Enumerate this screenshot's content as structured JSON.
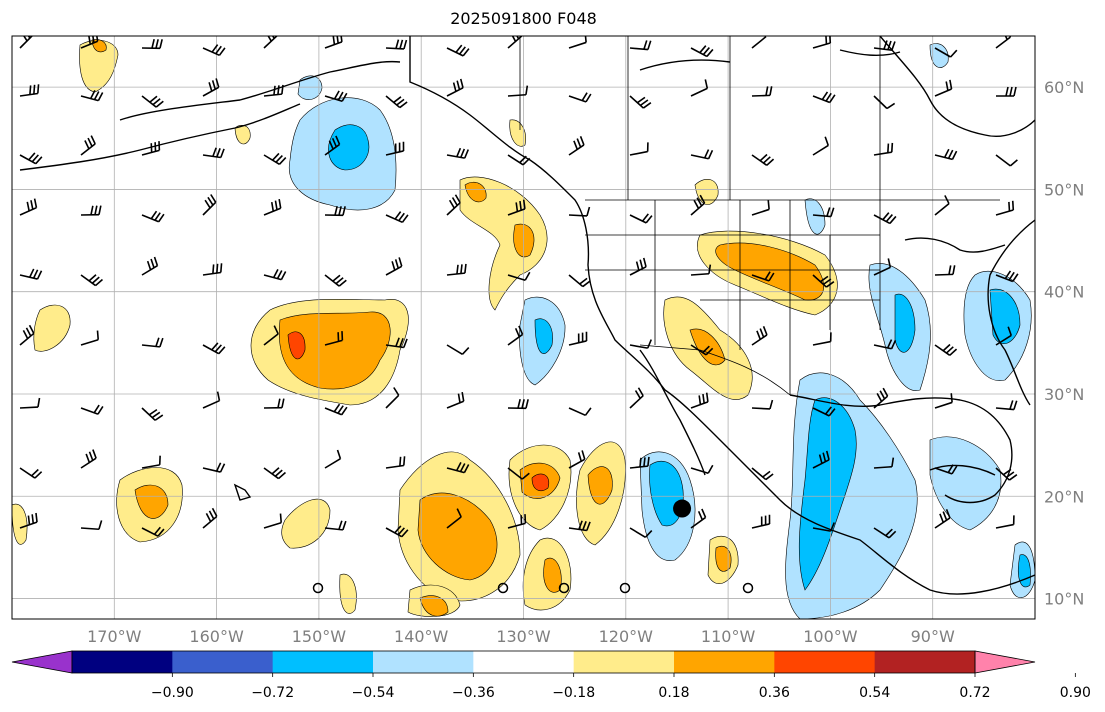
{
  "title": "2025091800 F048",
  "map": {
    "extent": {
      "lon_min": -180,
      "lon_max": -80,
      "lat_min": 8,
      "lat_max": 65
    },
    "lon_ticks": [
      "170°W",
      "160°W",
      "150°W",
      "140°W",
      "130°W",
      "120°W",
      "110°W",
      "100°W",
      "90°W"
    ],
    "lat_ticks": [
      "60°N",
      "50°N",
      "40°N",
      "30°N",
      "20°N",
      "10°N"
    ],
    "gridlines": true,
    "marker": {
      "lon": -114.5,
      "lat": 18.8,
      "label": ""
    }
  },
  "colorbar": {
    "tick_labels": [
      "−0.90",
      "−0.72",
      "−0.54",
      "−0.36",
      "−0.18",
      "0.18",
      "0.36",
      "0.54",
      "0.72",
      "0.90"
    ],
    "colors": [
      "#9932cc",
      "#000080",
      "#3a5fcd",
      "#00bfff",
      "#b0e2ff",
      "#ffffff",
      "#ffec8b",
      "#ffa500",
      "#ff4500",
      "#b22222",
      "#ff82ab"
    ],
    "extend": "both"
  },
  "colors": {
    "coast": "#000000",
    "grid": "#b0b0b0",
    "pos_light": "#ffec8b",
    "pos_mid": "#ffa500",
    "pos_high": "#ff4500",
    "neg_light": "#b0e2ff",
    "neg_mid": "#00bfff"
  }
}
